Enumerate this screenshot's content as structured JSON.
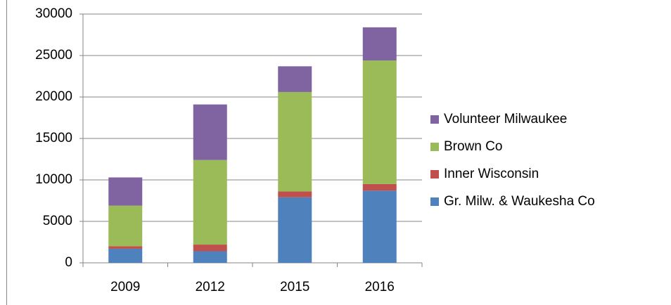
{
  "chart_data": {
    "type": "stacked_bar",
    "categories": [
      "2009",
      "2012",
      "2015",
      "2016"
    ],
    "series": [
      {
        "name": "Gr. Milw. & Waukesha Co",
        "color": "#4f81bd",
        "values": [
          1700,
          1400,
          7900,
          8700
        ]
      },
      {
        "name": "Inner Wisconsin",
        "color": "#c0504d",
        "values": [
          300,
          800,
          700,
          800
        ]
      },
      {
        "name": "Brown Co",
        "color": "#9bbb59",
        "values": [
          4900,
          10200,
          12000,
          14900
        ]
      },
      {
        "name": "Volunteer Milwaukee",
        "color": "#8064a2",
        "values": [
          3400,
          6700,
          3100,
          4000
        ]
      }
    ],
    "ylim": [
      0,
      30000
    ],
    "yticks": [
      0,
      5000,
      10000,
      15000,
      20000,
      25000,
      30000
    ],
    "grid": true,
    "legend": "right"
  }
}
